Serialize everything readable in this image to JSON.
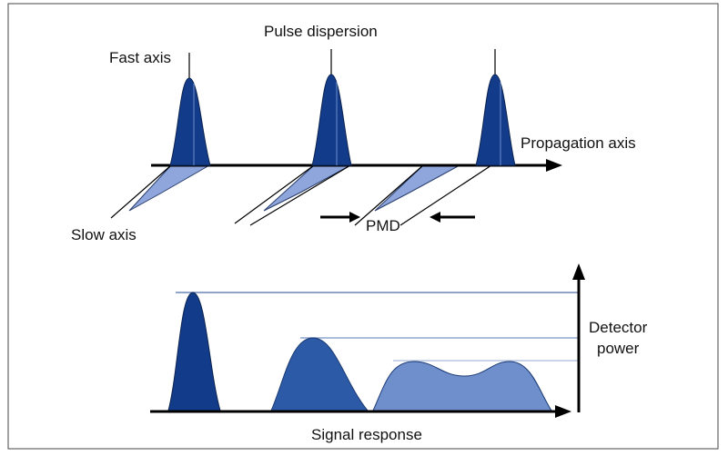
{
  "labels": {
    "fast_axis": "Fast axis",
    "pulse_dispersion": "Pulse dispersion",
    "propagation_axis": "Propagation axis",
    "slow_axis": "Slow axis",
    "pmd": "PMD",
    "detector_power_line1": "Detector",
    "detector_power_line2": "power",
    "signal_response": "Signal response"
  },
  "colors": {
    "pulse_dark": "#123b8a",
    "pulse_medium": "#2d5aa6",
    "pulse_light": "#6f8ecc",
    "slow_fill": "#8ea6dc",
    "reference_line": "#6b86b8",
    "axis": "#000000"
  }
}
